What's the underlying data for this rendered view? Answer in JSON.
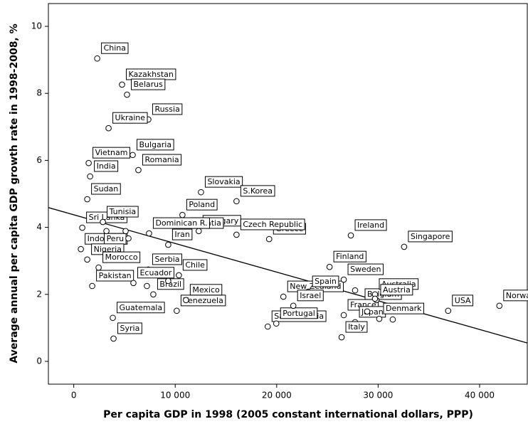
{
  "chart_data": {
    "type": "scatter",
    "xlabel": "Per capita GDP in 1998 (2005 constant international dollars, PPP)",
    "ylabel": "Average annual per capita GDP growth rate in 1998-2008, %",
    "xlim": [
      -2500,
      44700
    ],
    "ylim": [
      -0.68,
      10.68
    ],
    "xticks": [
      0,
      {
        "value": 10000,
        "label": "10 000"
      },
      {
        "value": 20000,
        "label": "20 000"
      },
      {
        "value": 30000,
        "label": "30 000"
      },
      {
        "value": 40000,
        "label": "40 000"
      }
    ],
    "yticks": [
      0,
      2,
      4,
      6,
      8,
      10
    ],
    "marker_color": "#000000",
    "trendline": {
      "x": [
        -2500,
        44700
      ],
      "y": [
        4.59,
        0.55
      ]
    },
    "series": [
      {
        "labels": [
          "China",
          "Kazakhstan",
          "Belarus",
          "Russia",
          "Ukraine",
          "Bulgaria",
          "Romania",
          "Vietnam",
          "India",
          "Sudan",
          "Sri Lanka",
          "Tunisia",
          "Poland",
          "Slovakia",
          "S.Korea",
          "Hungary",
          "Croatia",
          "Dominican R.",
          "Iran",
          "Greece",
          "Czech Republic",
          "Ireland",
          "Singapore",
          "Indonesia",
          "Peru",
          "Nigeria",
          "Morocco",
          "Serbia",
          "Pakistan",
          "Ecuador",
          "Brazil",
          "Chile",
          "Venezuela",
          "Mexico",
          "Guatemala",
          "Syria",
          "New Zealand",
          "Saudi Arabia",
          "Portugal",
          "Finland",
          "Spain",
          "Sweden",
          "Israel",
          "Belgium",
          "France",
          "Japan",
          "Italy",
          "Australia",
          "Austria",
          "Denmark",
          "USA",
          "Norway",
          null,
          null,
          null,
          null,
          null,
          null,
          null,
          null,
          null
        ],
        "x": [
          2310,
          4760,
          5250,
          7350,
          3430,
          5810,
          6370,
          1470,
          1610,
          1330,
          840,
          2870,
          10710,
          12540,
          16040,
          12320,
          11130,
          7420,
          9310,
          19260,
          16040,
          27310,
          32560,
          700,
          2590,
          1330,
          2450,
          7350,
          1820,
          5880,
          7840,
          10360,
          10150,
          11060,
          3850,
          3920,
          20660,
          19120,
          19960,
          25210,
          23110,
          26610,
          21640,
          28290,
          26610,
          27730,
          26400,
          29690,
          29830,
          30110,
          36900,
          41950,
          5110,
          5390,
          3220,
          7210,
          9310,
          27730,
          28920,
          29690,
          31440
        ],
        "values": [
          9.04,
          8.26,
          7.96,
          7.22,
          6.96,
          6.16,
          5.71,
          5.92,
          5.52,
          4.84,
          3.99,
          4.16,
          4.37,
          5.05,
          4.78,
          3.89,
          3.82,
          3.82,
          3.48,
          3.65,
          3.78,
          3.76,
          3.42,
          3.35,
          3.35,
          3.04,
          2.8,
          2.74,
          2.25,
          2.34,
          2.0,
          2.57,
          1.51,
          1.83,
          1.3,
          0.68,
          1.93,
          1.04,
          1.13,
          2.82,
          2.08,
          2.44,
          1.66,
          1.7,
          1.38,
          1.17,
          0.72,
          2.0,
          1.83,
          1.27,
          1.51,
          1.66,
          3.89,
          3.67,
          3.89,
          2.25,
          2.4,
          2.12,
          1.49,
          1.87,
          1.25
        ]
      }
    ]
  }
}
